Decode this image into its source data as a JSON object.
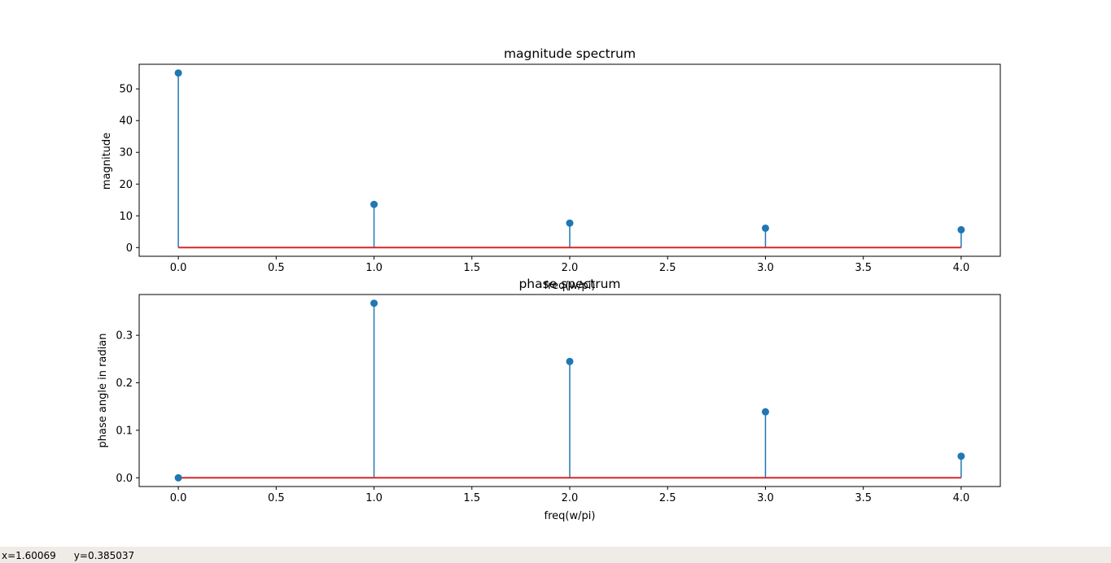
{
  "status": {
    "x_readout": "x=1.60069",
    "y_readout": "y=0.385037"
  },
  "colors": {
    "stem": "#1f77b4",
    "baseline": "#d62728",
    "status_bg": "#efebe7"
  },
  "chart_data": [
    {
      "type": "stem",
      "title": "magnitude spectrum",
      "xlabel": "freq(w/pi)",
      "ylabel": "magnitude",
      "x": [
        0,
        1,
        2,
        3,
        4
      ],
      "values": [
        55.0,
        13.6,
        7.7,
        6.1,
        5.6
      ],
      "xlim": [
        -0.2,
        4.2
      ],
      "ylim": [
        -2.75,
        57.75
      ],
      "xticks": [
        "0.0",
        "0.5",
        "1.0",
        "1.5",
        "2.0",
        "2.5",
        "3.0",
        "3.5",
        "4.0"
      ],
      "yticks": [
        "0",
        "10",
        "20",
        "30",
        "40",
        "50"
      ],
      "grid": false
    },
    {
      "type": "stem",
      "title": "phase spectrum",
      "xlabel": "freq(w/pi)",
      "ylabel": "phase angle in radian",
      "x": [
        0,
        1,
        2,
        3,
        4
      ],
      "values": [
        0.0,
        0.3674,
        0.2449,
        0.1389,
        0.0455
      ],
      "xlim": [
        -0.2,
        4.2
      ],
      "ylim": [
        -0.0184,
        0.3858
      ],
      "xticks": [
        "0.0",
        "0.5",
        "1.0",
        "1.5",
        "2.0",
        "2.5",
        "3.0",
        "3.5",
        "4.0"
      ],
      "yticks": [
        "0.0",
        "0.1",
        "0.2",
        "0.3"
      ],
      "grid": false
    }
  ]
}
